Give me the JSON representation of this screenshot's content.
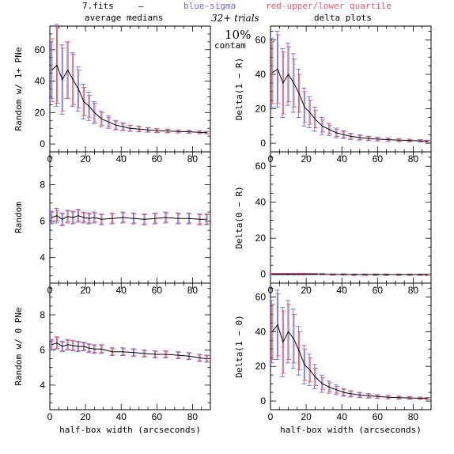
{
  "header": {
    "file": "7.fits",
    "dash": "—",
    "blue_label": "blue-sigma",
    "red_label": "red-upper/lower quartile",
    "trials": "32+ trials",
    "contam_pct": "10%",
    "contam": "contam",
    "col_left": "average medians",
    "col_right": "delta plots"
  },
  "colors": {
    "line": "#000000",
    "sigma": "#6a6ae0",
    "quartile": "#e05a6a"
  },
  "chart_data": [
    {
      "type": "line",
      "panel": "top-left",
      "ylabel": "Random w/ 1+ PNe",
      "xlabel": "",
      "xlim": [
        0,
        90
      ],
      "ylim": [
        -5,
        75
      ],
      "xticks": [
        0,
        20,
        40,
        60,
        80
      ],
      "yticks": [
        0,
        20,
        40,
        60
      ],
      "x": [
        1,
        4,
        7,
        10,
        13,
        16,
        19,
        22,
        25,
        29,
        33,
        37,
        41,
        45,
        50,
        55,
        60,
        66,
        72,
        78,
        84,
        88
      ],
      "values": [
        47,
        50,
        41,
        47,
        41,
        35,
        27,
        24,
        20,
        16,
        14,
        12,
        11,
        10,
        9.5,
        9,
        8.5,
        8.3,
        8,
        7.8,
        7.5,
        7.3
      ],
      "sigma": [
        18,
        26,
        22,
        18,
        17,
        14,
        11,
        9,
        7,
        5,
        4,
        3,
        2.5,
        2,
        1.8,
        1.5,
        1.3,
        1.2,
        1,
        1,
        0.9,
        0.8
      ],
      "quartile": [
        20,
        24,
        20,
        18,
        16,
        12,
        9,
        7,
        6,
        4,
        3,
        2.5,
        2,
        1.8,
        1.5,
        1.3,
        1.1,
        1,
        0.9,
        0.8,
        0.8,
        0.7
      ]
    },
    {
      "type": "line",
      "panel": "top-right",
      "ylabel": "Delta(1 − R)",
      "xlabel": "",
      "xlim": [
        0,
        90
      ],
      "ylim": [
        -5,
        68
      ],
      "xticks": [
        0,
        20,
        40,
        60,
        80
      ],
      "yticks": [
        0,
        20,
        40,
        60
      ],
      "x": [
        1,
        4,
        7,
        10,
        13,
        16,
        19,
        22,
        25,
        29,
        33,
        37,
        41,
        45,
        50,
        55,
        60,
        66,
        72,
        78,
        84,
        88
      ],
      "values": [
        41,
        43,
        35,
        40,
        35,
        29,
        21,
        18,
        14,
        10,
        8,
        6,
        5,
        4,
        3.3,
        2.8,
        2.4,
        2.1,
        1.8,
        1.6,
        1.4,
        1.2
      ],
      "sigma": [
        20,
        22,
        20,
        18,
        17,
        14,
        11,
        9,
        7,
        5,
        3.5,
        2.8,
        2.2,
        1.8,
        1.5,
        1.3,
        1.1,
        1,
        0.9,
        0.8,
        0.7,
        0.6
      ],
      "quartile": [
        18,
        20,
        18,
        16,
        14,
        11,
        9,
        7,
        5,
        3.5,
        2.5,
        2,
        1.8,
        1.5,
        1.2,
        1,
        0.9,
        0.8,
        0.7,
        0.6,
        0.6,
        0.5
      ]
    },
    {
      "type": "line",
      "panel": "middle-left",
      "ylabel": "Random",
      "xlabel": "",
      "xlim": [
        0,
        90
      ],
      "ylim": [
        2.6,
        9.8
      ],
      "xticks": [
        0,
        20,
        40,
        60,
        80
      ],
      "yticks": [
        4,
        6,
        8
      ],
      "x": [
        1,
        4,
        7,
        10,
        13,
        16,
        19,
        22,
        25,
        29,
        35,
        41,
        47,
        53,
        59,
        65,
        72,
        78,
        84,
        88
      ],
      "values": [
        6.2,
        6.3,
        6.1,
        6.25,
        6.2,
        6.3,
        6.2,
        6.15,
        6.2,
        6.1,
        6.15,
        6.2,
        6.15,
        6.1,
        6.15,
        6.2,
        6.15,
        6.15,
        6.1,
        6.1
      ],
      "sigma": [
        0.35,
        0.4,
        0.35,
        0.35,
        0.35,
        0.35,
        0.3,
        0.3,
        0.3,
        0.3,
        0.3,
        0.3,
        0.3,
        0.3,
        0.3,
        0.3,
        0.3,
        0.3,
        0.3,
        0.3
      ],
      "quartile": [
        0.3,
        0.3,
        0.3,
        0.3,
        0.3,
        0.3,
        0.25,
        0.25,
        0.25,
        0.25,
        0.25,
        0.25,
        0.25,
        0.25,
        0.25,
        0.25,
        0.25,
        0.25,
        0.25,
        0.25
      ]
    },
    {
      "type": "line",
      "panel": "middle-right",
      "ylabel": "Delta(0 − R)",
      "xlabel": "",
      "xlim": [
        0,
        90
      ],
      "ylim": [
        -5,
        68
      ],
      "xticks": [
        0,
        20,
        40,
        60,
        80
      ],
      "yticks": [
        0,
        20,
        40,
        60
      ],
      "x": [
        1,
        4,
        7,
        10,
        13,
        16,
        19,
        22,
        25,
        29,
        35,
        41,
        47,
        53,
        59,
        65,
        72,
        78,
        84,
        88
      ],
      "values": [
        0,
        0,
        0,
        0,
        0,
        0,
        0,
        0,
        0,
        0,
        -0.2,
        -0.2,
        -0.3,
        -0.3,
        -0.3,
        -0.3,
        -0.3,
        -0.3,
        -0.3,
        -0.3
      ],
      "sigma": [
        0.5,
        0.5,
        0.5,
        0.5,
        0.5,
        0.5,
        0.5,
        0.4,
        0.4,
        0.4,
        0.4,
        0.4,
        0.4,
        0.4,
        0.4,
        0.4,
        0.4,
        0.4,
        0.4,
        0.4
      ],
      "quartile": [
        0.4,
        0.4,
        0.4,
        0.4,
        0.4,
        0.4,
        0.4,
        0.3,
        0.3,
        0.3,
        0.3,
        0.3,
        0.3,
        0.3,
        0.3,
        0.3,
        0.3,
        0.3,
        0.3,
        0.3
      ]
    },
    {
      "type": "line",
      "panel": "bottom-left",
      "ylabel": "Random w/ 0 PNe",
      "xlabel": "half-box width (arcseconds)",
      "xlim": [
        0,
        90
      ],
      "ylim": [
        2.6,
        9.8
      ],
      "xticks": [
        0,
        20,
        40,
        60,
        80
      ],
      "yticks": [
        4,
        6,
        8
      ],
      "x": [
        1,
        4,
        7,
        10,
        13,
        16,
        19,
        22,
        25,
        29,
        35,
        41,
        47,
        53,
        59,
        65,
        72,
        78,
        84,
        88
      ],
      "values": [
        6.3,
        6.4,
        6.2,
        6.3,
        6.25,
        6.2,
        6.2,
        6.1,
        6.05,
        6.05,
        5.9,
        5.9,
        5.85,
        5.8,
        5.75,
        5.75,
        5.7,
        5.65,
        5.55,
        5.5
      ],
      "sigma": [
        0.3,
        0.35,
        0.3,
        0.3,
        0.3,
        0.3,
        0.25,
        0.25,
        0.25,
        0.25,
        0.22,
        0.22,
        0.22,
        0.2,
        0.2,
        0.2,
        0.2,
        0.2,
        0.2,
        0.2
      ],
      "quartile": [
        0.25,
        0.3,
        0.25,
        0.25,
        0.25,
        0.25,
        0.2,
        0.2,
        0.2,
        0.2,
        0.18,
        0.18,
        0.18,
        0.17,
        0.17,
        0.17,
        0.17,
        0.17,
        0.17,
        0.17
      ]
    },
    {
      "type": "line",
      "panel": "bottom-right",
      "ylabel": "Delta(1 − 0)",
      "xlabel": "half-box width (arcseconds)",
      "xlim": [
        0,
        90
      ],
      "ylim": [
        -5,
        68
      ],
      "xticks": [
        0,
        20,
        40,
        60,
        80
      ],
      "yticks": [
        0,
        20,
        40,
        60
      ],
      "x": [
        1,
        4,
        7,
        10,
        13,
        16,
        19,
        22,
        25,
        29,
        33,
        37,
        41,
        45,
        50,
        55,
        60,
        66,
        72,
        78,
        84,
        88
      ],
      "values": [
        40,
        44,
        34,
        40,
        36,
        29,
        21,
        18,
        14,
        10,
        8,
        6.5,
        5,
        4.2,
        3.5,
        3,
        2.6,
        2.2,
        2,
        1.8,
        1.6,
        1.5
      ],
      "sigma": [
        18,
        20,
        20,
        18,
        17,
        14,
        11,
        9,
        7,
        5,
        3.5,
        2.8,
        2.2,
        1.8,
        1.5,
        1.3,
        1.1,
        1,
        0.9,
        0.8,
        0.7,
        0.6
      ],
      "quartile": [
        16,
        18,
        18,
        16,
        14,
        11,
        9,
        7,
        5,
        3.5,
        2.5,
        2,
        1.8,
        1.5,
        1.2,
        1,
        0.9,
        0.8,
        0.7,
        0.6,
        0.6,
        0.5
      ]
    }
  ]
}
